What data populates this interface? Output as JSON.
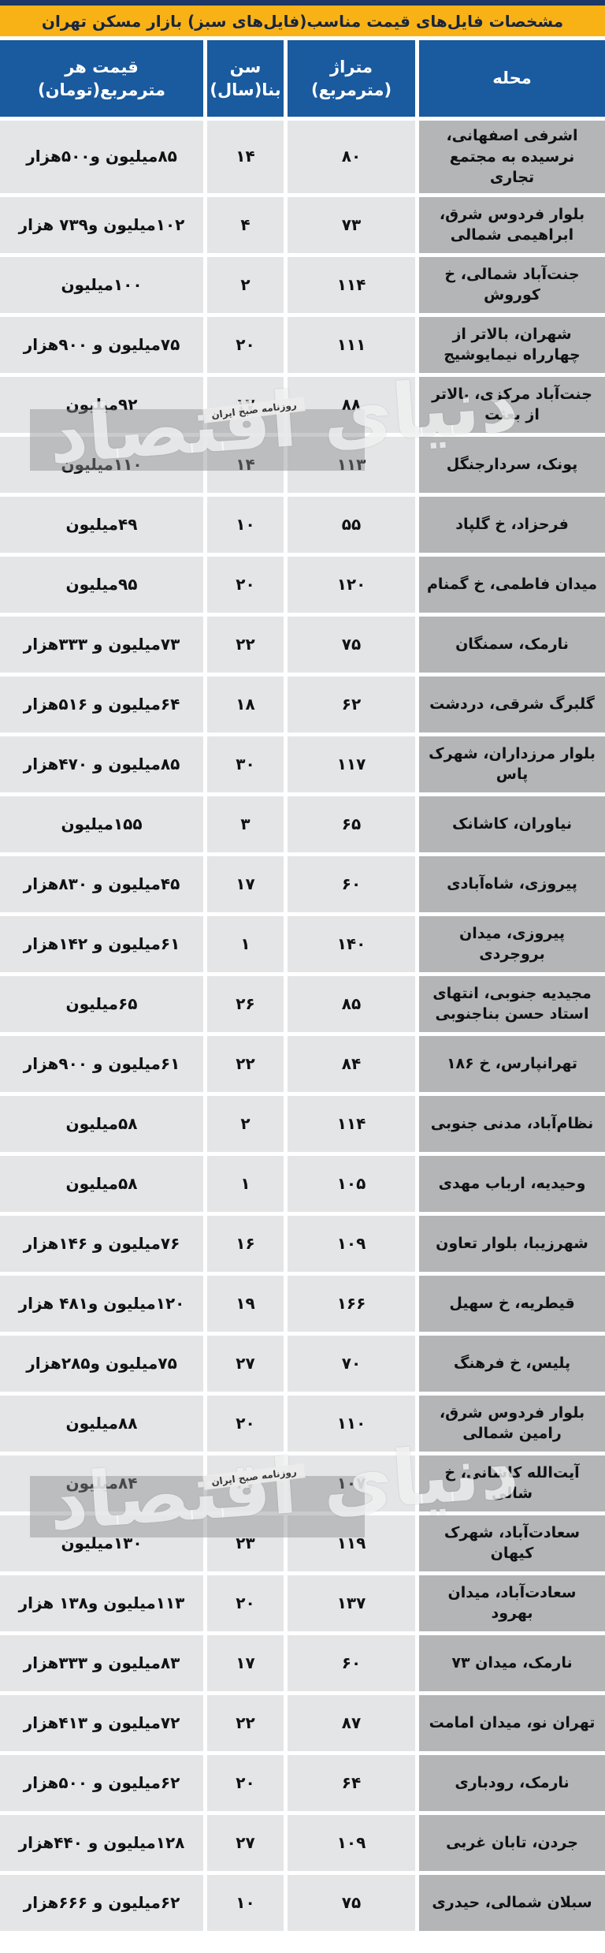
{
  "page": {
    "title": "مشخصات فایل‌های قیمت مناسب(فایل‌های سبز) بازار مسکن تهران"
  },
  "colors": {
    "top_strip": "#1d3866",
    "title_bar_bg": "#f9b216",
    "title_text": "#17253f",
    "header_bg": "#1a5a9e",
    "header_text": "#ffffff",
    "data_cell_bg": "#e4e5e7",
    "neighborhood_cell_bg": "#b3b5b7",
    "row_gap": "#ffffff"
  },
  "watermark": {
    "logo": "دنیای اقتصاد",
    "tagline": "روزنامه صبح ایران"
  },
  "table": {
    "headers": {
      "neighborhood": "محله",
      "area": "متراژ\n(مترمربع)",
      "age": "سن\nبنا(سال)",
      "price": "قیمت هر\nمترمربع(تومان)"
    },
    "rows": [
      {
        "neighborhood": "اشرفی اصفهانی، نرسیده به مجتمع تجاری",
        "area": "۸۰",
        "age": "۱۴",
        "price": "۸۵میلیون و۵۰۰هزار"
      },
      {
        "neighborhood": "بلوار فردوس شرق، ابراهیمی شمالی",
        "area": "۷۳",
        "age": "۴",
        "price": "۱۰۲میلیون و۷۳۹ هزار"
      },
      {
        "neighborhood": "جنت‌آباد شمالی، خ کوروش",
        "area": "۱۱۴",
        "age": "۲",
        "price": "۱۰۰میلیون"
      },
      {
        "neighborhood": "شهران، بالاتر از چهارراه نیمایوشیج",
        "area": "۱۱۱",
        "age": "۲۰",
        "price": "۷۵میلیون و ۹۰۰هزار"
      },
      {
        "neighborhood": "جنت‌آباد مرکزی، بالاتر از بعثت",
        "area": "۸۸",
        "age": "۱۷",
        "price": "۹۲میلیون"
      },
      {
        "neighborhood": "پونک، سردارجنگل",
        "area": "۱۱۳",
        "age": "۱۴",
        "price": "۱۱۰میلیون"
      },
      {
        "neighborhood": "فرحزاد، خ گلپاد",
        "area": "۵۵",
        "age": "۱۰",
        "price": "۴۹میلیون"
      },
      {
        "neighborhood": "میدان فاطمی، خ گمنام",
        "area": "۱۲۰",
        "age": "۲۰",
        "price": "۹۵میلیون"
      },
      {
        "neighborhood": "نارمک، سمنگان",
        "area": "۷۵",
        "age": "۲۲",
        "price": "۷۳میلیون و ۳۳۳هزار"
      },
      {
        "neighborhood": "گلبرگ شرقی، دردشت",
        "area": "۶۲",
        "age": "۱۸",
        "price": "۶۴میلیون و ۵۱۶هزار"
      },
      {
        "neighborhood": "بلوار مرزداران، شهرک پاس",
        "area": "۱۱۷",
        "age": "۳۰",
        "price": "۸۵میلیون و ۴۷۰هزار"
      },
      {
        "neighborhood": "نیاوران، کاشانک",
        "area": "۶۵",
        "age": "۳",
        "price": "۱۵۵میلیون"
      },
      {
        "neighborhood": "پیروزی، شاه‌آبادی",
        "area": "۶۰",
        "age": "۱۷",
        "price": "۴۵میلیون و ۸۳۰هزار"
      },
      {
        "neighborhood": "پیروزی، میدان بروجردی",
        "area": "۱۴۰",
        "age": "۱",
        "price": "۶۱میلیون و ۱۴۲هزار"
      },
      {
        "neighborhood": "مجیدیه جنوبی، انتهای استاد حسن بناجنوبی",
        "area": "۸۵",
        "age": "۲۶",
        "price": "۶۵میلیون"
      },
      {
        "neighborhood": "تهرانپارس، خ ۱۸۶",
        "area": "۸۴",
        "age": "۲۲",
        "price": "۶۱میلیون و ۹۰۰هزار"
      },
      {
        "neighborhood": "نظام‌آباد، مدنی جنوبی",
        "area": "۱۱۴",
        "age": "۲",
        "price": "۵۸میلیون"
      },
      {
        "neighborhood": "وحیدیه، ارباب مهدی",
        "area": "۱۰۵",
        "age": "۱",
        "price": "۵۸میلیون"
      },
      {
        "neighborhood": "شهرزیبا، بلوار تعاون",
        "area": "۱۰۹",
        "age": "۱۶",
        "price": "۷۶میلیون و ۱۴۶هزار"
      },
      {
        "neighborhood": "قیطریه، خ سهیل",
        "area": "۱۶۶",
        "age": "۱۹",
        "price": "۱۲۰میلیون و۴۸۱ هزار"
      },
      {
        "neighborhood": "پلیس، خ فرهنگ",
        "area": "۷۰",
        "age": "۲۷",
        "price": "۷۵میلیون و۲۸۵هزار"
      },
      {
        "neighborhood": "بلوار فردوس شرق، رامین شمالی",
        "area": "۱۱۰",
        "age": "۲۰",
        "price": "۸۸میلیون"
      },
      {
        "neighborhood": "آیت‌الله کاشانی، خ شالی",
        "area": "۱۰۷",
        "age": "۲۷",
        "price": "۸۴میلیون"
      },
      {
        "neighborhood": "سعادت‌آباد، شهرک کیهان",
        "area": "۱۱۹",
        "age": "۲۳",
        "price": "۱۳۰میلیون"
      },
      {
        "neighborhood": "سعادت‌آباد، میدان بهرود",
        "area": "۱۳۷",
        "age": "۲۰",
        "price": "۱۱۳میلیون و۱۳۸ هزار"
      },
      {
        "neighborhood": "نارمک، میدان ۷۳",
        "area": "۶۰",
        "age": "۱۷",
        "price": "۸۳میلیون و ۳۳۳هزار"
      },
      {
        "neighborhood": "تهران نو، میدان امامت",
        "area": "۸۷",
        "age": "۲۲",
        "price": "۷۲میلیون و ۴۱۳هزار"
      },
      {
        "neighborhood": "نارمک، رودباری",
        "area": "۶۴",
        "age": "۲۰",
        "price": "۶۲میلیون و ۵۰۰هزار"
      },
      {
        "neighborhood": "جردن، تابان غربی",
        "area": "۱۰۹",
        "age": "۲۷",
        "price": "۱۲۸میلیون و ۴۴۰هزار"
      },
      {
        "neighborhood": "سبلان شمالی، حیدری",
        "area": "۷۵",
        "age": "۱۰",
        "price": "۶۲میلیون و ۶۶۶هزار"
      }
    ]
  }
}
